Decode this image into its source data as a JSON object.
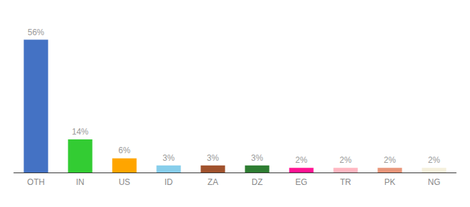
{
  "chart_data": {
    "type": "bar",
    "categories": [
      "OTH",
      "IN",
      "US",
      "ID",
      "ZA",
      "DZ",
      "EG",
      "TR",
      "PK",
      "NG"
    ],
    "values": [
      56,
      14,
      6,
      3,
      3,
      3,
      2,
      2,
      2,
      2
    ],
    "value_labels": [
      "56%",
      "14%",
      "6%",
      "3%",
      "3%",
      "3%",
      "2%",
      "2%",
      "2%",
      "2%"
    ],
    "colors": [
      "#4472C4",
      "#33CC33",
      "#FFA500",
      "#87CEEB",
      "#A0522D",
      "#2E7D32",
      "#FF1493",
      "#FFB6C1",
      "#E8967A",
      "#F5F0DC"
    ],
    "ylim": [
      0,
      64
    ],
    "data_labels": true,
    "tick_labels": "x",
    "grid": false
  }
}
